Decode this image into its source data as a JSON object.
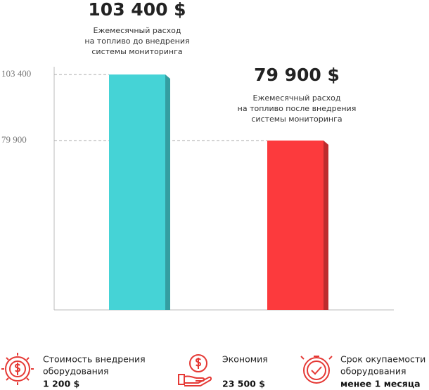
{
  "chart_data": {
    "type": "bar",
    "values": [
      103400,
      79900
    ],
    "value_labels": [
      "103 400 $",
      "79 900 $"
    ],
    "colors": [
      "#45d3d6",
      "#fc3a3d"
    ],
    "descriptions": [
      [
        "Ежемесячный расход",
        "на топливо до внедрения",
        "системы мониторинга"
      ],
      [
        "Ежемесячный расход",
        "на топливо после внедрения",
        "системы мониторинга"
      ]
    ],
    "ylim": [
      19650,
      103400
    ],
    "yticks": [
      {
        "value": 103400,
        "label": "103 400"
      },
      {
        "value": 79900,
        "label": "79 900"
      }
    ]
  },
  "footer": [
    {
      "lines": [
        "Стоимость внедрения",
        "оборудования"
      ],
      "value": "1 200 $"
    },
    {
      "lines": [
        "Экономия"
      ],
      "value": "23 500 $"
    },
    {
      "lines": [
        "Срок окупаемости",
        "оборудования"
      ],
      "value": "менее 1 месяца"
    }
  ]
}
